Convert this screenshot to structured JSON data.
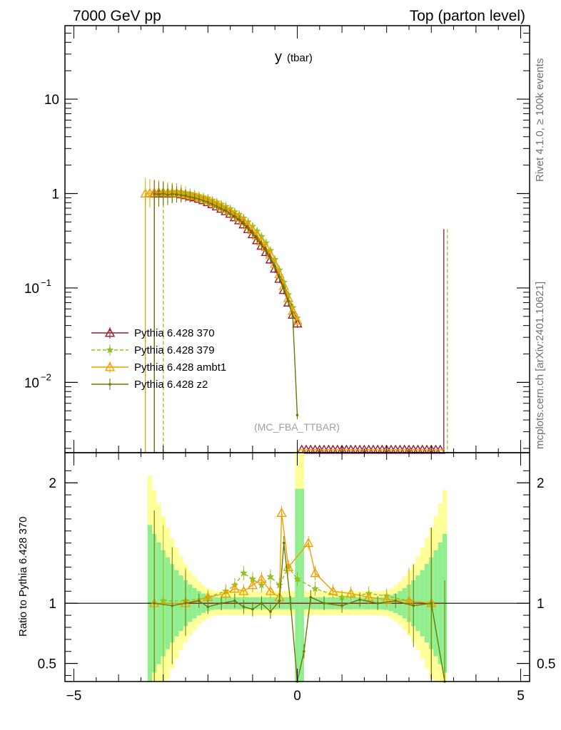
{
  "header": {
    "left": "7000 GeV pp",
    "right": "Top (parton level)"
  },
  "side_text": {
    "rivet": "Rivet 4.1.0, ≥ 100k events",
    "mcplots": "mcplots.cern.ch [arXiv:2401.10621]"
  },
  "watermark": "(MC_FBA_TTBAR)",
  "colors": {
    "p370": "#9a1b32",
    "p379": "#8fc31f",
    "ambt1": "#f0a000",
    "z2": "#6b7a00",
    "band_inner": "#90ee90",
    "band_outer": "#ffff99"
  },
  "chart_data": [
    {
      "type": "line",
      "panel": "main",
      "title": "y",
      "title_sub": "(tbar)",
      "xlim": [
        -5.2,
        5.2
      ],
      "ylim": [
        0.0018,
        60
      ],
      "yscale": "log",
      "y_ticks": [
        {
          "value": 10,
          "label": "10",
          "base": "",
          "exp": ""
        },
        {
          "value": 1,
          "label": "1",
          "base": "",
          "exp": ""
        },
        {
          "value": 0.1,
          "label": "",
          "base": "10",
          "exp": "−1"
        },
        {
          "value": 0.01,
          "label": "",
          "base": "10",
          "exp": "−2"
        }
      ],
      "legend_position": "middle-left",
      "series": [
        {
          "key": "p370",
          "name": "Pythia 6.428 370",
          "marker": "triangle-open",
          "dash": "",
          "points": [
            [
              -3.2,
              1.0
            ],
            [
              -3.1,
              1.0
            ],
            [
              -3.0,
              1.0
            ],
            [
              -2.9,
              1.0
            ],
            [
              -2.8,
              1.0
            ],
            [
              -2.7,
              1.0
            ],
            [
              -2.6,
              0.98
            ],
            [
              -2.5,
              0.96
            ],
            [
              -2.4,
              0.93
            ],
            [
              -2.3,
              0.91
            ],
            [
              -2.2,
              0.88
            ],
            [
              -2.1,
              0.85
            ],
            [
              -2.0,
              0.81
            ],
            [
              -1.9,
              0.77
            ],
            [
              -1.8,
              0.73
            ],
            [
              -1.7,
              0.69
            ],
            [
              -1.6,
              0.65
            ],
            [
              -1.5,
              0.61
            ],
            [
              -1.4,
              0.56
            ],
            [
              -1.3,
              0.52
            ],
            [
              -1.2,
              0.47
            ],
            [
              -1.1,
              0.42
            ],
            [
              -1.0,
              0.37
            ],
            [
              -0.9,
              0.32
            ],
            [
              -0.8,
              0.28
            ],
            [
              -0.7,
              0.24
            ],
            [
              -0.6,
              0.2
            ],
            [
              -0.5,
              0.16
            ],
            [
              -0.4,
              0.125
            ],
            [
              -0.3,
              0.095
            ],
            [
              -0.2,
              0.07
            ],
            [
              -0.1,
              0.052
            ],
            [
              0.0,
              0.042
            ]
          ]
        },
        {
          "key": "p379",
          "name": "Pythia 6.428 379",
          "marker": "star",
          "dash": "5,3",
          "points": [
            [
              -3.0,
              1.02
            ],
            [
              -2.9,
              1.03
            ],
            [
              -2.8,
              1.04
            ],
            [
              -2.7,
              1.05
            ],
            [
              -2.6,
              1.04
            ],
            [
              -2.5,
              1.02
            ],
            [
              -2.4,
              1.0
            ],
            [
              -2.3,
              0.98
            ],
            [
              -2.2,
              0.95
            ],
            [
              -2.1,
              0.92
            ],
            [
              -2.0,
              0.89
            ],
            [
              -1.9,
              0.85
            ],
            [
              -1.8,
              0.81
            ],
            [
              -1.7,
              0.77
            ],
            [
              -1.6,
              0.73
            ],
            [
              -1.5,
              0.69
            ],
            [
              -1.4,
              0.64
            ],
            [
              -1.3,
              0.6
            ],
            [
              -1.2,
              0.55
            ],
            [
              -1.1,
              0.5
            ],
            [
              -1.0,
              0.45
            ],
            [
              -0.9,
              0.4
            ],
            [
              -0.8,
              0.35
            ],
            [
              -0.7,
              0.3
            ],
            [
              -0.6,
              0.25
            ],
            [
              -0.5,
              0.2
            ],
            [
              -0.4,
              0.155
            ],
            [
              -0.3,
              0.115
            ],
            [
              -0.2,
              0.085
            ],
            [
              -0.1,
              0.062
            ],
            [
              0.0,
              0.048
            ]
          ]
        },
        {
          "key": "ambt1",
          "name": "Pythia 6.428 ambt1",
          "marker": "triangle-open",
          "dash": "",
          "points": [
            [
              -3.4,
              1.0
            ],
            [
              -3.3,
              1.01
            ],
            [
              -3.2,
              1.02
            ],
            [
              -3.1,
              1.03
            ],
            [
              -3.0,
              1.03
            ],
            [
              -2.9,
              1.02
            ],
            [
              -2.8,
              1.02
            ],
            [
              -2.7,
              1.01
            ],
            [
              -2.6,
              1.0
            ],
            [
              -2.5,
              0.98
            ],
            [
              -2.4,
              0.96
            ],
            [
              -2.3,
              0.94
            ],
            [
              -2.2,
              0.91
            ],
            [
              -2.1,
              0.88
            ],
            [
              -2.0,
              0.85
            ],
            [
              -1.9,
              0.81
            ],
            [
              -1.8,
              0.77
            ],
            [
              -1.7,
              0.73
            ],
            [
              -1.6,
              0.69
            ],
            [
              -1.5,
              0.65
            ],
            [
              -1.4,
              0.6
            ],
            [
              -1.3,
              0.56
            ],
            [
              -1.2,
              0.51
            ],
            [
              -1.1,
              0.46
            ],
            [
              -1.0,
              0.41
            ],
            [
              -0.9,
              0.36
            ],
            [
              -0.8,
              0.31
            ],
            [
              -0.7,
              0.27
            ],
            [
              -0.6,
              0.225
            ],
            [
              -0.5,
              0.18
            ],
            [
              -0.4,
              0.14
            ],
            [
              -0.3,
              0.105
            ],
            [
              -0.2,
              0.078
            ],
            [
              -0.1,
              0.057
            ],
            [
              0.0,
              0.045
            ]
          ]
        },
        {
          "key": "z2",
          "name": "Pythia 6.428 z2",
          "marker": "dot",
          "dash": "",
          "points": [
            [
              -3.2,
              1.0
            ],
            [
              -3.1,
              0.98
            ],
            [
              -3.0,
              1.0
            ],
            [
              -2.9,
              0.97
            ],
            [
              -2.8,
              0.99
            ],
            [
              -2.7,
              0.98
            ],
            [
              -2.6,
              0.96
            ],
            [
              -2.5,
              0.95
            ],
            [
              -2.4,
              0.92
            ],
            [
              -2.3,
              0.9
            ],
            [
              -2.2,
              0.87
            ],
            [
              -2.1,
              0.84
            ],
            [
              -2.0,
              0.81
            ],
            [
              -1.9,
              0.77
            ],
            [
              -1.8,
              0.73
            ],
            [
              -1.7,
              0.69
            ],
            [
              -1.6,
              0.66
            ],
            [
              -1.5,
              0.61
            ],
            [
              -1.4,
              0.57
            ],
            [
              -1.3,
              0.53
            ],
            [
              -1.2,
              0.48
            ],
            [
              -1.1,
              0.43
            ],
            [
              -1.0,
              0.38
            ],
            [
              -0.9,
              0.33
            ],
            [
              -0.8,
              0.29
            ],
            [
              -0.7,
              0.25
            ],
            [
              -0.6,
              0.21
            ],
            [
              -0.5,
              0.17
            ],
            [
              -0.4,
              0.13
            ],
            [
              -0.3,
              0.1
            ],
            [
              -0.2,
              0.072
            ],
            [
              -0.1,
              0.05
            ],
            [
              0.0,
              0.0045
            ]
          ]
        }
      ]
    },
    {
      "type": "line",
      "panel": "ratio",
      "ylabel": "Ratio to Pythia 6.428 370",
      "xlim": [
        -5.2,
        5.2
      ],
      "ylim": [
        0.35,
        2.25
      ],
      "x_ticks": [
        {
          "value": -5,
          "label": "−5"
        },
        {
          "value": 0,
          "label": "0"
        },
        {
          "value": 5,
          "label": "5"
        }
      ],
      "y_ticks": [
        {
          "value": 2,
          "label": "2"
        },
        {
          "value": 1,
          "label": "1"
        },
        {
          "value": 0.5,
          "label": "0.5"
        }
      ],
      "reference_line": 1,
      "series": [
        {
          "key": "p379",
          "points": [
            [
              -3.0,
              1.02
            ],
            [
              -2.5,
              1.02
            ],
            [
              -2.0,
              1.05
            ],
            [
              -1.6,
              1.1
            ],
            [
              -1.4,
              1.15
            ],
            [
              -1.2,
              1.25
            ],
            [
              -1.0,
              1.2
            ],
            [
              -0.8,
              1.15
            ],
            [
              -0.6,
              1.22
            ],
            [
              -0.4,
              1.15
            ],
            [
              -0.2,
              1.3
            ],
            [
              0.0,
              1.2
            ],
            [
              0.4,
              1.12
            ],
            [
              1.0,
              1.05
            ],
            [
              1.6,
              1.08
            ],
            [
              2.0,
              1.06
            ],
            [
              2.5,
              1.02
            ],
            [
              3.0,
              1.0
            ]
          ]
        },
        {
          "key": "ambt1",
          "points": [
            [
              -3.2,
              1.0
            ],
            [
              -2.5,
              1.0
            ],
            [
              -2.0,
              1.05
            ],
            [
              -1.6,
              1.08
            ],
            [
              -1.4,
              1.12
            ],
            [
              -1.2,
              1.1
            ],
            [
              -1.0,
              1.15
            ],
            [
              -0.8,
              1.2
            ],
            [
              -0.6,
              1.1
            ],
            [
              -0.4,
              1.05
            ],
            [
              -0.35,
              1.75
            ],
            [
              -0.2,
              1.3
            ],
            [
              0.25,
              1.5
            ],
            [
              0.4,
              1.25
            ],
            [
              0.8,
              1.1
            ],
            [
              1.2,
              1.08
            ],
            [
              1.6,
              1.05
            ],
            [
              2.0,
              1.03
            ],
            [
              2.5,
              1.02
            ],
            [
              3.0,
              1.0
            ]
          ]
        },
        {
          "key": "z2",
          "points": [
            [
              -3.2,
              1.0
            ],
            [
              -2.8,
              0.98
            ],
            [
              -2.5,
              1.0
            ],
            [
              -2.2,
              1.02
            ],
            [
              -2.0,
              0.97
            ],
            [
              -1.7,
              1.0
            ],
            [
              -1.4,
              1.02
            ],
            [
              -1.2,
              0.97
            ],
            [
              -1.0,
              0.95
            ],
            [
              -0.8,
              1.0
            ],
            [
              -0.6,
              0.93
            ],
            [
              -0.4,
              1.02
            ],
            [
              -0.3,
              1.5
            ],
            [
              -0.15,
              1.0
            ],
            [
              0.0,
              0.35
            ],
            [
              0.15,
              0.6
            ],
            [
              0.3,
              1.05
            ],
            [
              0.6,
              1.0
            ],
            [
              1.0,
              0.98
            ],
            [
              1.4,
              1.03
            ],
            [
              1.8,
              1.0
            ],
            [
              2.2,
              1.02
            ],
            [
              2.6,
              0.98
            ],
            [
              3.0,
              1.0
            ],
            [
              3.3,
              0.35
            ]
          ]
        }
      ]
    }
  ]
}
